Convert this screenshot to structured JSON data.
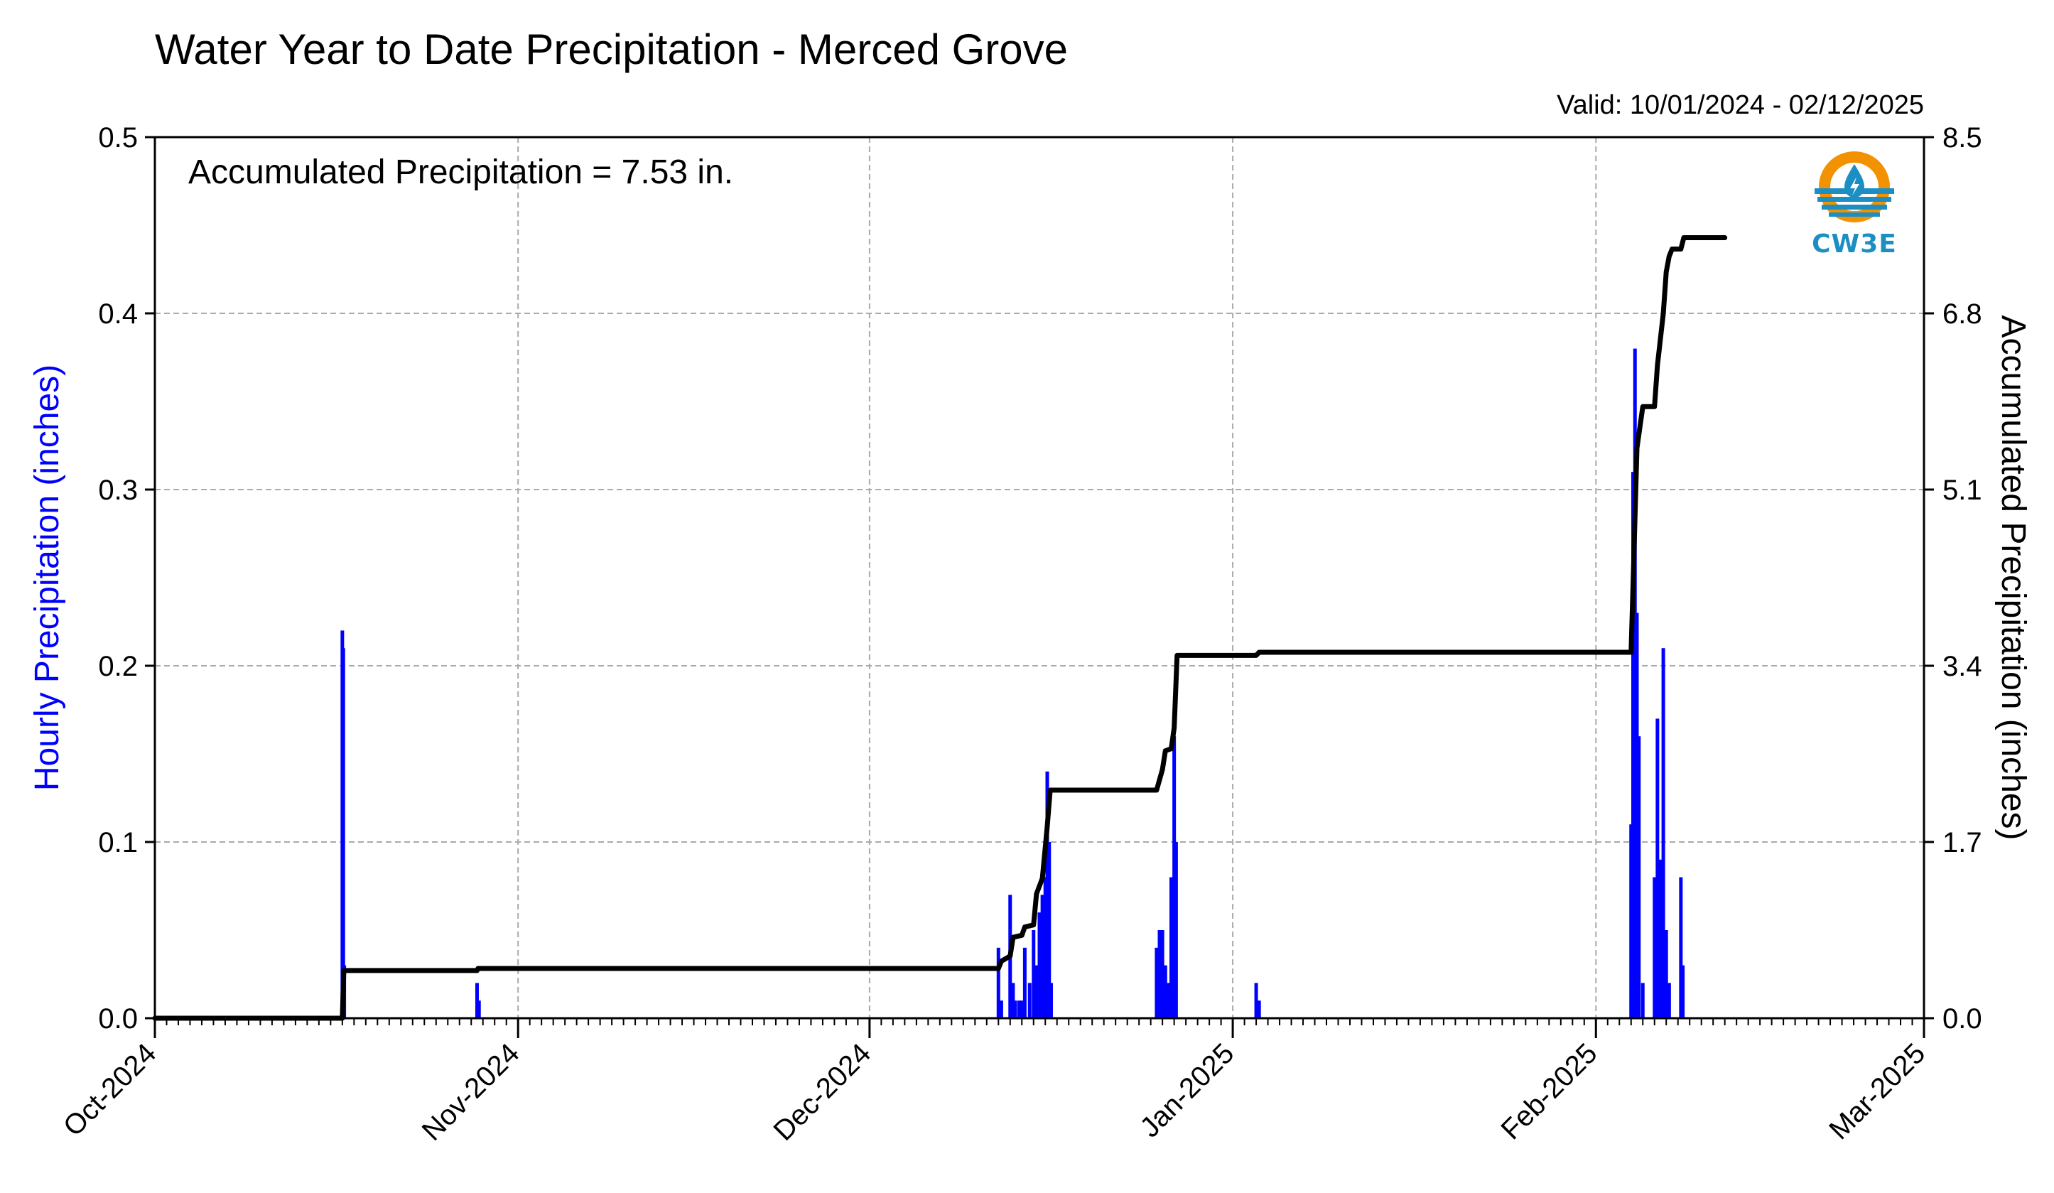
{
  "chart_data": {
    "type": "bar",
    "title": "Water Year to Date Precipitation - Merced Grove",
    "valid_text": "Valid: 10/01/2024 - 02/12/2025",
    "annotation": "Accumulated Precipitation = 7.53 in.",
    "ylabel_left": "Hourly Precipitation (inches)",
    "ylabel_right": "Accumulated Precipitation (inches)",
    "xlim": [
      "2024-10-01",
      "2025-03-01"
    ],
    "ylim_left": [
      0.0,
      0.5
    ],
    "ylim_right": [
      0.0,
      8.5
    ],
    "left_ticks": [
      "0.0",
      "0.1",
      "0.2",
      "0.3",
      "0.4",
      "0.5"
    ],
    "right_ticks": [
      "0.0",
      "1.7",
      "3.4",
      "5.1",
      "6.8",
      "8.5"
    ],
    "x_ticks": [
      {
        "date": "2024-10-01",
        "label": "Oct-2024"
      },
      {
        "date": "2024-11-01",
        "label": "Nov-2024"
      },
      {
        "date": "2024-12-01",
        "label": "Dec-2024"
      },
      {
        "date": "2025-01-01",
        "label": "Jan-2025"
      },
      {
        "date": "2025-02-01",
        "label": "Feb-2025"
      },
      {
        "date": "2025-03-01",
        "label": "Mar-2025"
      }
    ],
    "grid": true,
    "colors": {
      "hourly": "#0000ff",
      "accumulated": "#000000",
      "grid": "#aaaaaa"
    },
    "series": [
      {
        "name": "Hourly Precipitation (inches)",
        "kind": "bar",
        "points": [
          [
            "2024-10-17T00:00",
            0.22
          ],
          [
            "2024-10-17T02:00",
            0.21
          ],
          [
            "2024-10-17T04:00",
            0.03
          ],
          [
            "2024-10-28T12:00",
            0.02
          ],
          [
            "2024-10-28T16:00",
            0.01
          ],
          [
            "2024-12-12T00:00",
            0.04
          ],
          [
            "2024-12-12T06:00",
            0.01
          ],
          [
            "2024-12-13T00:00",
            0.07
          ],
          [
            "2024-12-13T06:00",
            0.02
          ],
          [
            "2024-12-13T10:00",
            0.01
          ],
          [
            "2024-12-13T18:00",
            0.01
          ],
          [
            "2024-12-14T00:00",
            0.01
          ],
          [
            "2024-12-14T06:00",
            0.04
          ],
          [
            "2024-12-14T16:00",
            0.02
          ],
          [
            "2024-12-15T00:00",
            0.05
          ],
          [
            "2024-12-15T06:00",
            0.03
          ],
          [
            "2024-12-15T12:00",
            0.06
          ],
          [
            "2024-12-15T18:00",
            0.07
          ],
          [
            "2024-12-16T00:00",
            0.08
          ],
          [
            "2024-12-16T04:00",
            0.14
          ],
          [
            "2024-12-16T08:00",
            0.1
          ],
          [
            "2024-12-16T12:00",
            0.02
          ],
          [
            "2024-12-25T12:00",
            0.04
          ],
          [
            "2024-12-25T18:00",
            0.05
          ],
          [
            "2024-12-26T00:00",
            0.05
          ],
          [
            "2024-12-26T06:00",
            0.03
          ],
          [
            "2024-12-26T12:00",
            0.02
          ],
          [
            "2024-12-26T18:00",
            0.08
          ],
          [
            "2024-12-27T00:00",
            0.16
          ],
          [
            "2024-12-27T04:00",
            0.1
          ],
          [
            "2025-01-03T00:00",
            0.02
          ],
          [
            "2025-01-03T06:00",
            0.01
          ],
          [
            "2025-02-04T00:00",
            0.11
          ],
          [
            "2025-02-04T04:00",
            0.31
          ],
          [
            "2025-02-04T08:00",
            0.38
          ],
          [
            "2025-02-04T12:00",
            0.23
          ],
          [
            "2025-02-04T16:00",
            0.16
          ],
          [
            "2025-02-05T00:00",
            0.02
          ],
          [
            "2025-02-06T00:00",
            0.08
          ],
          [
            "2025-02-06T06:00",
            0.17
          ],
          [
            "2025-02-06T12:00",
            0.09
          ],
          [
            "2025-02-06T18:00",
            0.21
          ],
          [
            "2025-02-07T00:00",
            0.05
          ],
          [
            "2025-02-07T06:00",
            0.02
          ],
          [
            "2025-02-08T06:00",
            0.08
          ],
          [
            "2025-02-08T10:00",
            0.03
          ]
        ]
      },
      {
        "name": "Accumulated Precipitation (inches)",
        "kind": "line",
        "points": [
          [
            "2024-10-01T00:00",
            0.0
          ],
          [
            "2024-10-17T00:00",
            0.0
          ],
          [
            "2024-10-17T03:00",
            0.46
          ],
          [
            "2024-10-28T12:00",
            0.46
          ],
          [
            "2024-10-28T14:00",
            0.48
          ],
          [
            "2024-12-12T00:00",
            0.48
          ],
          [
            "2024-12-12T06:00",
            0.55
          ],
          [
            "2024-12-13T00:00",
            0.6
          ],
          [
            "2024-12-13T06:00",
            0.78
          ],
          [
            "2024-12-14T00:00",
            0.8
          ],
          [
            "2024-12-14T06:00",
            0.88
          ],
          [
            "2024-12-15T00:00",
            0.9
          ],
          [
            "2024-12-15T06:00",
            1.2
          ],
          [
            "2024-12-15T18:00",
            1.35
          ],
          [
            "2024-12-16T04:00",
            1.85
          ],
          [
            "2024-12-16T10:00",
            2.2
          ],
          [
            "2024-12-25T12:00",
            2.2
          ],
          [
            "2024-12-26T00:00",
            2.4
          ],
          [
            "2024-12-26T06:00",
            2.58
          ],
          [
            "2024-12-26T18:00",
            2.6
          ],
          [
            "2024-12-27T00:00",
            2.8
          ],
          [
            "2024-12-27T06:00",
            3.5
          ],
          [
            "2025-01-03T00:00",
            3.5
          ],
          [
            "2025-01-03T06:00",
            3.53
          ],
          [
            "2025-02-04T00:00",
            3.53
          ],
          [
            "2025-02-04T06:00",
            4.5
          ],
          [
            "2025-02-04T12:00",
            5.5
          ],
          [
            "2025-02-05T00:00",
            5.9
          ],
          [
            "2025-02-06T00:00",
            5.9
          ],
          [
            "2025-02-06T06:00",
            6.3
          ],
          [
            "2025-02-06T18:00",
            6.8
          ],
          [
            "2025-02-07T00:00",
            7.2
          ],
          [
            "2025-02-07T06:00",
            7.35
          ],
          [
            "2025-02-07T12:00",
            7.42
          ],
          [
            "2025-02-08T06:00",
            7.42
          ],
          [
            "2025-02-08T12:00",
            7.53
          ],
          [
            "2025-02-12T00:00",
            7.53
          ]
        ]
      }
    ]
  },
  "logo": {
    "text": "CW3E",
    "ring_color": "#f39200",
    "water_color": "#1b8fc4"
  }
}
